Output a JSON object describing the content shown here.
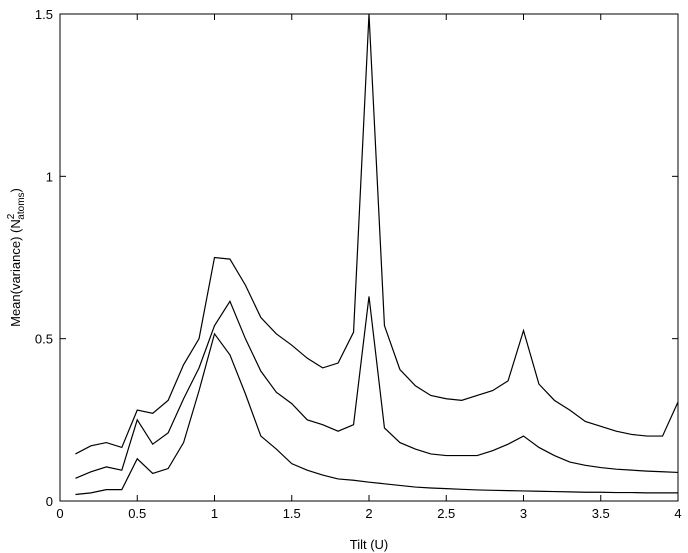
{
  "chart_data": {
    "type": "line",
    "title": "",
    "xlabel": "Tilt (U)",
    "ylabel": {
      "main": "Mean(variance) (N",
      "sup": "2",
      "sub": "atoms",
      "close": ")"
    },
    "xlim": [
      0,
      4
    ],
    "ylim": [
      0,
      1.5
    ],
    "xticks": [
      "0",
      "0.5",
      "1",
      "1.5",
      "2",
      "2.5",
      "3",
      "3.5",
      "4"
    ],
    "yticks": [
      "0",
      "0.5",
      "1",
      "1.5"
    ],
    "grid": false,
    "x": [
      0.1,
      0.2,
      0.3,
      0.4,
      0.5,
      0.6,
      0.7,
      0.8,
      0.9,
      1.0,
      1.1,
      1.2,
      1.3,
      1.4,
      1.5,
      1.6,
      1.7,
      1.8,
      1.9,
      2.0,
      2.1,
      2.2,
      2.3,
      2.4,
      2.5,
      2.6,
      2.7,
      2.8,
      2.9,
      3.0,
      3.1,
      3.2,
      3.3,
      3.4,
      3.5,
      3.6,
      3.7,
      3.8,
      3.9,
      4.0
    ],
    "series": [
      {
        "values": [
          0.145,
          0.17,
          0.18,
          0.165,
          0.28,
          0.27,
          0.31,
          0.42,
          0.5,
          0.75,
          0.745,
          0.665,
          0.565,
          0.515,
          0.48,
          0.44,
          0.41,
          0.425,
          0.52,
          1.5,
          0.54,
          0.405,
          0.355,
          0.325,
          0.315,
          0.31,
          0.325,
          0.34,
          0.37,
          0.525,
          0.36,
          0.31,
          0.28,
          0.245,
          0.23,
          0.215,
          0.205,
          0.2,
          0.2,
          0.305
        ]
      },
      {
        "values": [
          0.07,
          0.09,
          0.105,
          0.095,
          0.25,
          0.175,
          0.21,
          0.315,
          0.41,
          0.54,
          0.615,
          0.5,
          0.4,
          0.335,
          0.3,
          0.25,
          0.235,
          0.215,
          0.235,
          0.63,
          0.225,
          0.18,
          0.16,
          0.145,
          0.14,
          0.14,
          0.14,
          0.155,
          0.175,
          0.2,
          0.165,
          0.14,
          0.12,
          0.11,
          0.103,
          0.098,
          0.095,
          0.092,
          0.09,
          0.088
        ]
      },
      {
        "values": [
          0.02,
          0.025,
          0.035,
          0.035,
          0.13,
          0.085,
          0.1,
          0.18,
          0.34,
          0.515,
          0.45,
          0.33,
          0.2,
          0.16,
          0.115,
          0.095,
          0.08,
          0.068,
          0.064,
          0.058,
          0.053,
          0.048,
          0.043,
          0.04,
          0.038,
          0.036,
          0.034,
          0.033,
          0.032,
          0.031,
          0.03,
          0.029,
          0.028,
          0.027,
          0.027,
          0.026,
          0.026,
          0.025,
          0.025,
          0.025
        ]
      }
    ]
  }
}
